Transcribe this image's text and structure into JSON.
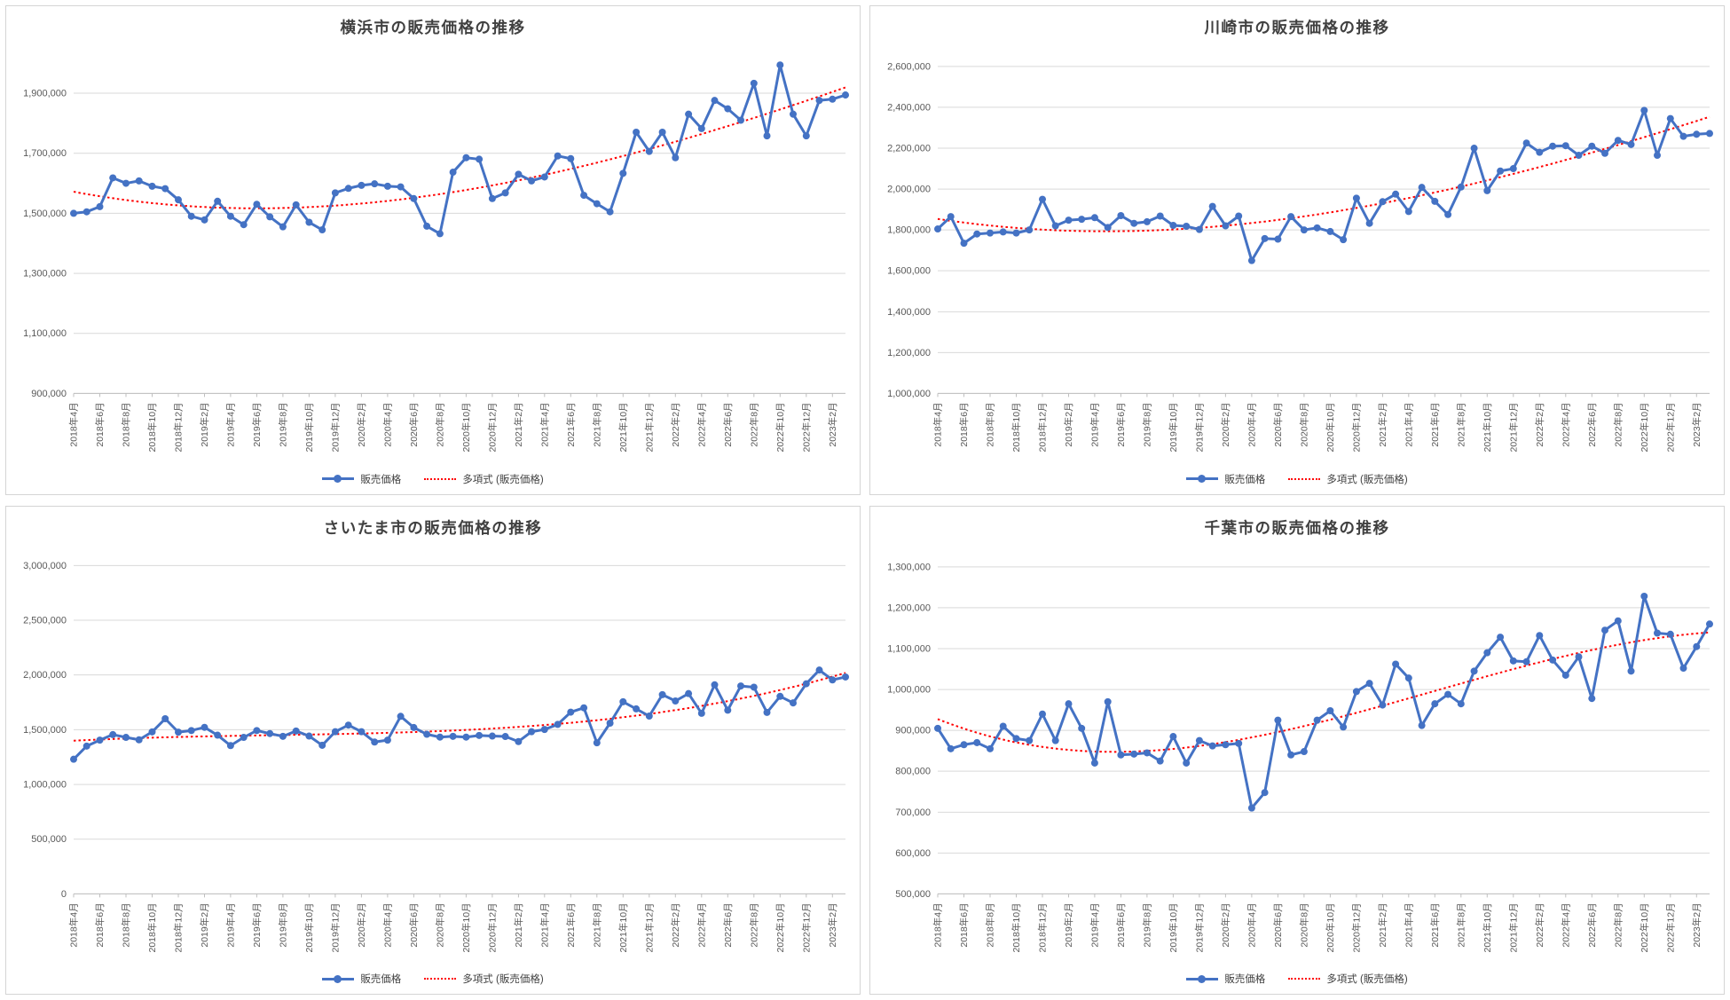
{
  "chart_data": [
    {
      "type": "line",
      "title": "横浜市の販売価格の推移",
      "legend_position": "bottom",
      "x_points_per_label": 2,
      "x_tick_labels": [
        "2018年4月",
        "2018年6月",
        "2018年8月",
        "2018年10月",
        "2018年12月",
        "2019年2月",
        "2019年4月",
        "2019年6月",
        "2019年8月",
        "2019年10月",
        "2019年12月",
        "2020年2月",
        "2020年4月",
        "2020年6月",
        "2020年8月",
        "2020年10月",
        "2020年12月",
        "2021年2月",
        "2021年4月",
        "2021年6月",
        "2021年8月",
        "2021年10月",
        "2021年12月",
        "2022年2月",
        "2022年4月",
        "2022年6月",
        "2022年8月",
        "2022年10月",
        "2022年12月",
        "2023年2月"
      ],
      "y_axis": {
        "min": 900000,
        "step": 200000,
        "plot_max": 2030000,
        "tick_labels": [
          "900,000",
          "1,100,000",
          "1,300,000",
          "1,500,000",
          "1,700,000",
          "1,900,000"
        ]
      },
      "series": [
        {
          "name": "販売価格",
          "color": "#4472C4",
          "values": [
            1500000,
            1505000,
            1522000,
            1618000,
            1600000,
            1608000,
            1590000,
            1582000,
            1545000,
            1490000,
            1478000,
            1540000,
            1490000,
            1462000,
            1530000,
            1488000,
            1455000,
            1528000,
            1470000,
            1445000,
            1568000,
            1583000,
            1593000,
            1598000,
            1590000,
            1588000,
            1549000,
            1457000,
            1432000,
            1637000,
            1685000,
            1680000,
            1549000,
            1568000,
            1630000,
            1608000,
            1621000,
            1691000,
            1682000,
            1560000,
            1532000,
            1505000,
            1633000,
            1770000,
            1706000,
            1770000,
            1685000,
            1830000,
            1782000,
            1876000,
            1848000,
            1810000,
            1933000,
            1758000,
            1994000,
            1830000,
            1758000,
            1876000,
            1880000,
            1894000
          ]
        }
      ],
      "trend": {
        "name": "多項式 (販売価格)",
        "kind": "polynomial",
        "style": "dotted",
        "color": "#FF0000"
      }
    },
    {
      "type": "line",
      "title": "川崎市の販売価格の推移",
      "legend_position": "bottom",
      "x_points_per_label": 2,
      "x_tick_labels": [
        "2018年4月",
        "2018年6月",
        "2018年8月",
        "2018年10月",
        "2018年12月",
        "2019年2月",
        "2019年4月",
        "2019年6月",
        "2019年8月",
        "2019年10月",
        "2019年12月",
        "2020年2月",
        "2020年4月",
        "2020年6月",
        "2020年8月",
        "2020年10月",
        "2020年12月",
        "2021年2月",
        "2021年4月",
        "2021年6月",
        "2021年8月",
        "2021年10月",
        "2021年12月",
        "2022年2月",
        "2022年4月",
        "2022年6月",
        "2022年8月",
        "2022年10月",
        "2022年12月",
        "2023年2月"
      ],
      "y_axis": {
        "min": 1000000,
        "step": 200000,
        "plot_max": 2660000,
        "tick_labels": [
          "1,000,000",
          "1,200,000",
          "1,400,000",
          "1,600,000",
          "1,800,000",
          "2,000,000",
          "2,200,000",
          "2,400,000",
          "2,600,000"
        ]
      },
      "series": [
        {
          "name": "販売価格",
          "color": "#4472C4",
          "values": [
            1805000,
            1865000,
            1735000,
            1780000,
            1785000,
            1790000,
            1785000,
            1800000,
            1950000,
            1820000,
            1848000,
            1852000,
            1860000,
            1812000,
            1870000,
            1832000,
            1840000,
            1868000,
            1822000,
            1818000,
            1802000,
            1915000,
            1820000,
            1868000,
            1650000,
            1758000,
            1755000,
            1865000,
            1800000,
            1810000,
            1792000,
            1752000,
            1955000,
            1832000,
            1938000,
            1975000,
            1890000,
            2008000,
            1940000,
            1875000,
            2010000,
            2200000,
            1992000,
            2088000,
            2100000,
            2225000,
            2180000,
            2210000,
            2212000,
            2165000,
            2210000,
            2175000,
            2238000,
            2218000,
            2385000,
            2165000,
            2345000,
            2258000,
            2268000,
            2272000
          ]
        }
      ],
      "trend": {
        "name": "多項式 (販売価格)",
        "kind": "polynomial",
        "style": "dotted",
        "color": "#FF0000"
      }
    },
    {
      "type": "line",
      "title": "さいたま市の販売価格の推移",
      "legend_position": "bottom",
      "x_points_per_label": 2,
      "x_tick_labels": [
        "2018年4月",
        "2018年6月",
        "2018年8月",
        "2018年10月",
        "2018年12月",
        "2019年2月",
        "2019年4月",
        "2019年6月",
        "2019年8月",
        "2019年10月",
        "2019年12月",
        "2020年2月",
        "2020年4月",
        "2020年6月",
        "2020年8月",
        "2020年10月",
        "2020年12月",
        "2021年2月",
        "2021年4月",
        "2021年6月",
        "2021年8月",
        "2021年10月",
        "2021年12月",
        "2022年2月",
        "2022年4月",
        "2022年6月",
        "2022年8月",
        "2022年10月",
        "2022年12月",
        "2023年2月"
      ],
      "y_axis": {
        "min": 0,
        "step": 500000,
        "plot_max": 3100000,
        "tick_labels": [
          "0",
          "500,000",
          "1,000,000",
          "1,500,000",
          "2,000,000",
          "2,500,000",
          "3,000,000"
        ]
      },
      "series": [
        {
          "name": "販売価格",
          "color": "#4472C4",
          "values": [
            1230000,
            1350000,
            1405000,
            1455000,
            1430000,
            1408000,
            1480000,
            1600000,
            1478000,
            1492000,
            1522000,
            1450000,
            1355000,
            1430000,
            1492000,
            1465000,
            1440000,
            1488000,
            1442000,
            1358000,
            1482000,
            1542000,
            1482000,
            1388000,
            1405000,
            1622000,
            1520000,
            1458000,
            1432000,
            1440000,
            1432000,
            1448000,
            1442000,
            1438000,
            1392000,
            1482000,
            1502000,
            1548000,
            1660000,
            1700000,
            1380000,
            1560000,
            1755000,
            1690000,
            1625000,
            1820000,
            1763000,
            1830000,
            1650000,
            1910000,
            1678000,
            1900000,
            1888000,
            1658000,
            1805000,
            1745000,
            1920000,
            2045000,
            1955000,
            1982000
          ]
        }
      ],
      "trend": {
        "name": "多項式 (販売価格)",
        "kind": "polynomial",
        "style": "dotted",
        "color": "#FF0000"
      }
    },
    {
      "type": "line",
      "title": "千葉市の販売価格の推移",
      "legend_position": "bottom",
      "x_points_per_label": 2,
      "x_tick_labels": [
        "2018年4月",
        "2018年6月",
        "2018年8月",
        "2018年10月",
        "2018年12月",
        "2019年2月",
        "2019年4月",
        "2019年6月",
        "2019年8月",
        "2019年10月",
        "2019年12月",
        "2020年2月",
        "2020年4月",
        "2020年6月",
        "2020年8月",
        "2020年10月",
        "2020年12月",
        "2021年2月",
        "2021年4月",
        "2021年6月",
        "2021年8月",
        "2021年10月",
        "2021年12月",
        "2022年2月",
        "2022年4月",
        "2022年6月",
        "2022年8月",
        "2022年10月",
        "2022年12月",
        "2023年2月"
      ],
      "y_axis": {
        "min": 500000,
        "step": 100000,
        "plot_max": 1330000,
        "tick_labels": [
          "500,000",
          "600,000",
          "700,000",
          "800,000",
          "900,000",
          "1,000,000",
          "1,100,000",
          "1,200,000",
          "1,300,000"
        ]
      },
      "series": [
        {
          "name": "販売価格",
          "color": "#4472C4",
          "values": [
            905000,
            855000,
            865000,
            870000,
            855000,
            910000,
            880000,
            875000,
            940000,
            875000,
            965000,
            905000,
            820000,
            970000,
            840000,
            842000,
            845000,
            825000,
            885000,
            820000,
            875000,
            862000,
            865000,
            868000,
            710000,
            748000,
            925000,
            840000,
            848000,
            925000,
            948000,
            908000,
            995000,
            1015000,
            962000,
            1062000,
            1028000,
            912000,
            965000,
            988000,
            965000,
            1045000,
            1090000,
            1128000,
            1070000,
            1068000,
            1132000,
            1072000,
            1035000,
            1080000,
            978000,
            1145000,
            1168000,
            1045000,
            1228000,
            1138000,
            1135000,
            1052000,
            1105000,
            1160000
          ]
        }
      ],
      "trend": {
        "name": "多項式 (販売価格)",
        "kind": "polynomial",
        "style": "dotted",
        "color": "#FF0000"
      }
    }
  ]
}
